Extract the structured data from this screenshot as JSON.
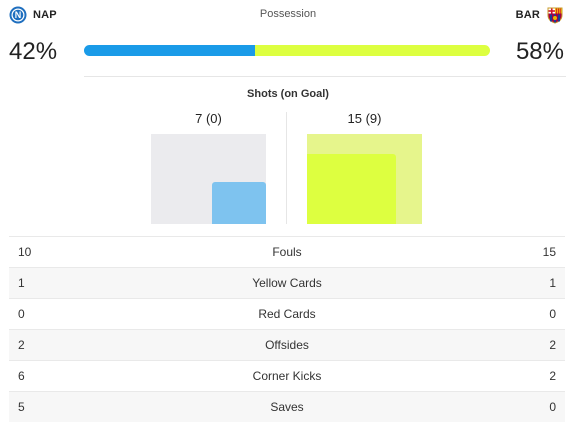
{
  "home": {
    "abbr": "NAP",
    "crest_icon": "napoli-crest-icon",
    "possession_text": "42%",
    "possession_value": 42,
    "color": "#1a9be8",
    "shots_text": "7 (0)",
    "shots": 7,
    "shots_on_goal": 0
  },
  "away": {
    "abbr": "BAR",
    "crest_icon": "barcelona-crest-icon",
    "possession_text": "58%",
    "possession_value": 58,
    "color": "#ddff40",
    "shots_text": "15 (9)",
    "shots": 15,
    "shots_on_goal": 9
  },
  "possession_label": "Possession",
  "shots_title": "Shots (on Goal)",
  "stats": [
    {
      "label": "Fouls",
      "home": "10",
      "away": "15"
    },
    {
      "label": "Yellow Cards",
      "home": "1",
      "away": "1"
    },
    {
      "label": "Red Cards",
      "home": "0",
      "away": "0"
    },
    {
      "label": "Offsides",
      "home": "2",
      "away": "2"
    },
    {
      "label": "Corner Kicks",
      "home": "6",
      "away": "2"
    },
    {
      "label": "Saves",
      "home": "5",
      "away": "0"
    }
  ]
}
